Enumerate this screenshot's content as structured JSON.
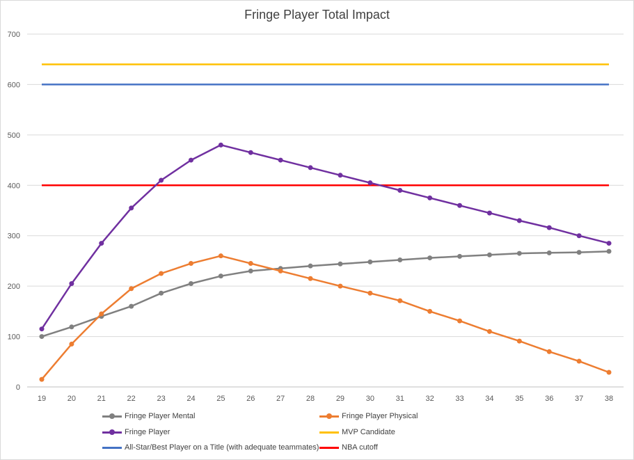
{
  "chart_data": {
    "type": "line",
    "title": "Fringe Player Total Impact",
    "xlabel": "",
    "ylabel": "",
    "categories": [
      "19",
      "20",
      "21",
      "22",
      "23",
      "24",
      "25",
      "26",
      "27",
      "28",
      "29",
      "30",
      "31",
      "32",
      "33",
      "34",
      "35",
      "36",
      "37",
      "38"
    ],
    "ylim": [
      0,
      700
    ],
    "yticks": [
      0,
      100,
      200,
      300,
      400,
      500,
      600,
      700
    ],
    "grid": true,
    "legend_position": "bottom",
    "series": [
      {
        "name": "Fringe Player Mental",
        "color": "#808080",
        "markers": true,
        "values": [
          100,
          119,
          140,
          160,
          186,
          205,
          220,
          230,
          235,
          240,
          244,
          248,
          252,
          256,
          259,
          262,
          265,
          266,
          267,
          269
        ]
      },
      {
        "name": "Fringe Player Physical",
        "color": "#ed7d31",
        "markers": true,
        "values": [
          15,
          85,
          145,
          195,
          225,
          245,
          260,
          245,
          230,
          215,
          200,
          186,
          171,
          150,
          131,
          110,
          91,
          70,
          51,
          29
        ]
      },
      {
        "name": "Fringe Player",
        "color": "#7030a0",
        "markers": true,
        "values": [
          115,
          205,
          285,
          355,
          410,
          450,
          480,
          465,
          450,
          435,
          420,
          405,
          390,
          375,
          360,
          345,
          330,
          316,
          300,
          285
        ]
      },
      {
        "name": "MVP Candidate",
        "color": "#ffc000",
        "markers": false,
        "values": [
          640,
          640,
          640,
          640,
          640,
          640,
          640,
          640,
          640,
          640,
          640,
          640,
          640,
          640,
          640,
          640,
          640,
          640,
          640,
          640
        ]
      },
      {
        "name": "All-Star/Best Player on a Title (with adequate teammates)",
        "color": "#4472c4",
        "markers": false,
        "values": [
          600,
          600,
          600,
          600,
          600,
          600,
          600,
          600,
          600,
          600,
          600,
          600,
          600,
          600,
          600,
          600,
          600,
          600,
          600,
          600
        ]
      },
      {
        "name": "NBA cutoff",
        "color": "#ff0000",
        "markers": false,
        "values": [
          400,
          400,
          400,
          400,
          400,
          400,
          400,
          400,
          400,
          400,
          400,
          400,
          400,
          400,
          400,
          400,
          400,
          400,
          400,
          400
        ]
      }
    ]
  }
}
